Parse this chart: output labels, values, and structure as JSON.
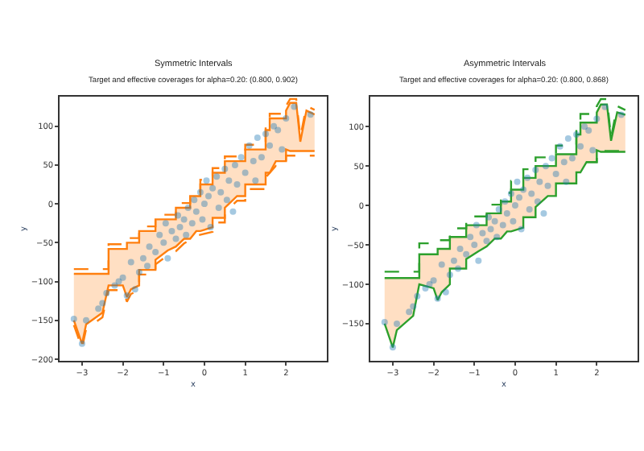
{
  "chart_data": [
    {
      "type": "line",
      "title": "Symmetric Intervals",
      "subtitle": "Target and effective coverages for alpha=0.20: (0.800, 0.902)",
      "xlabel": "x",
      "ylabel": "y",
      "xlim": [
        -3.55,
        3.0
      ],
      "xticks": [
        -3,
        -2,
        -1,
        0,
        1,
        2
      ],
      "ylim": [
        -202,
        138
      ],
      "yticks": [
        -200,
        -150,
        -100,
        -50,
        0,
        50,
        100
      ],
      "series": [
        {
          "type": "scatter",
          "color": "#1f77b4",
          "marker": "circle",
          "x": [
            -3.2,
            -3.0,
            -2.9,
            -2.6,
            -2.5,
            -2.4,
            -2.2,
            -2.1,
            -2.0,
            -1.9,
            -1.8,
            -1.7,
            -1.6,
            -1.5,
            -1.4,
            -1.35,
            -1.2,
            -1.1,
            -1.0,
            -0.95,
            -0.9,
            -0.8,
            -0.7,
            -0.65,
            -0.6,
            -0.5,
            -0.45,
            -0.4,
            -0.3,
            -0.25,
            -0.2,
            -0.1,
            -0.05,
            0,
            0.05,
            0.1,
            0.15,
            0.2,
            0.3,
            0.35,
            0.4,
            0.5,
            0.55,
            0.6,
            0.7,
            0.75,
            0.8,
            0.9,
            1.0,
            1.1,
            1.2,
            1.25,
            1.3,
            1.4,
            1.5,
            1.6,
            1.7,
            1.8,
            1.9,
            2.0,
            2.2,
            2.6
          ],
          "values": [
            -148,
            -180,
            -150,
            -135,
            -128,
            -115,
            -105,
            -100,
            -95,
            -118,
            -75,
            -110,
            -88,
            -70,
            -80,
            -55,
            -62,
            -40,
            -50,
            -25,
            -70,
            -35,
            -45,
            -15,
            -30,
            -20,
            -40,
            -5,
            -25,
            5,
            -10,
            15,
            -20,
            0,
            30,
            10,
            -30,
            20,
            35,
            -5,
            15,
            45,
            5,
            30,
            -10,
            50,
            25,
            60,
            40,
            75,
            55,
            30,
            85,
            60,
            90,
            75,
            100,
            95,
            70,
            110,
            125,
            115
          ]
        },
        {
          "color": "#ff7f0e",
          "line_style": "solid",
          "x": [
            -3.2,
            -3.0,
            -2.9,
            -2.5,
            -2.35,
            -2.35,
            -2.0,
            -1.9,
            -1.9,
            -1.8,
            -1.6,
            -1.6,
            -1.2,
            -1.2,
            -0.9,
            -0.7,
            -0.7,
            -0.5,
            -0.35,
            -0.35,
            -0.2,
            -0.1,
            -0.1,
            0.2,
            0.2,
            0.5,
            0.5,
            0.8,
            1.0,
            1.0,
            1.5,
            1.5,
            1.6,
            1.6,
            1.75,
            2.0,
            2.0,
            2.1,
            2.25,
            2.35,
            2.5,
            2.7
          ],
          "values": [
            -90,
            -90,
            -90,
            -90,
            -90,
            -58,
            -58,
            -58,
            -50,
            -50,
            -50,
            -35,
            -35,
            -20,
            -20,
            -20,
            -5,
            -5,
            -5,
            10,
            10,
            10,
            25,
            25,
            40,
            40,
            55,
            55,
            55,
            70,
            70,
            95,
            95,
            110,
            110,
            110,
            120,
            130,
            130,
            80,
            120,
            115
          ],
          "lower": [
            -150,
            -180,
            -155,
            -140,
            -105,
            -105,
            -105,
            -120,
            -120,
            -110,
            -105,
            -85,
            -85,
            -72,
            -60,
            -55,
            -55,
            -45,
            -45,
            -45,
            -35,
            -35,
            -35,
            -30,
            -18,
            -18,
            -5,
            10,
            10,
            25,
            25,
            40,
            40,
            40,
            55,
            55,
            70,
            68,
            68,
            68,
            68,
            68
          ],
          "upper": [
            -90,
            -90,
            -90,
            -90,
            -90,
            -58,
            -58,
            -58,
            -50,
            -50,
            -50,
            -35,
            -35,
            -20,
            -20,
            -20,
            -5,
            -5,
            -5,
            10,
            10,
            10,
            25,
            25,
            40,
            40,
            55,
            55,
            55,
            70,
            70,
            95,
            95,
            110,
            110,
            110,
            120,
            130,
            130,
            80,
            120,
            115
          ]
        },
        {
          "color": "#ff7f0e",
          "line_style": "solid",
          "x": [
            -3.2,
            -3.0,
            -2.9,
            -2.5,
            -2.35,
            -2.35,
            -2.0,
            -1.9,
            -1.9,
            -1.8,
            -1.6,
            -1.6,
            -1.2,
            -1.2,
            -0.9,
            -0.7,
            -0.7,
            -0.5,
            -0.35,
            -0.35,
            -0.2,
            -0.1,
            -0.1,
            0.2,
            0.2,
            0.5,
            0.5,
            0.8,
            1.0,
            1.0,
            1.5,
            1.5,
            1.6,
            1.6,
            1.75,
            2.0,
            2.0,
            2.1,
            2.25,
            2.35,
            2.5,
            2.7
          ],
          "values": [
            -150,
            -180,
            -155,
            -140,
            -105,
            -105,
            -105,
            -120,
            -120,
            -110,
            -105,
            -85,
            -85,
            -72,
            -60,
            -55,
            -55,
            -45,
            -45,
            -45,
            -35,
            -35,
            -35,
            -30,
            -18,
            -18,
            -5,
            10,
            10,
            25,
            25,
            40,
            40,
            40,
            55,
            55,
            70,
            68,
            68,
            68,
            68,
            68
          ]
        },
        {
          "color": "#ff7f0e",
          "line_style": "dashed",
          "x": [
            -3.2,
            -2.35,
            -2.35,
            -1.9,
            -1.9,
            -1.6,
            -1.6,
            -1.2,
            -1.2,
            -0.7,
            -0.7,
            -0.35,
            -0.35,
            -0.1,
            -0.1,
            0.2,
            0.2,
            0.5,
            0.5,
            1.0,
            1.0,
            1.5,
            1.5,
            1.6,
            1.6,
            2.0,
            2.0,
            2.1,
            2.25,
            2.35,
            2.5,
            2.7
          ],
          "values": [
            -84,
            -84,
            -52,
            -52,
            -44,
            -44,
            -29,
            -29,
            -14,
            -14,
            1,
            1,
            16,
            16,
            31,
            31,
            46,
            46,
            61,
            61,
            76,
            76,
            101,
            101,
            116,
            116,
            126,
            135,
            135,
            86,
            126,
            121
          ]
        },
        {
          "color": "#ff7f0e",
          "line_style": "dashed",
          "x": [
            -3.2,
            -3.0,
            -2.9,
            -2.5,
            -2.35,
            -2.0,
            -1.9,
            -1.8,
            -1.6,
            -1.6,
            -1.2,
            -1.2,
            -0.9,
            -0.7,
            -0.5,
            -0.2,
            0.2,
            0.2,
            0.5,
            0.5,
            0.8,
            1.0,
            1.0,
            1.5,
            1.5,
            1.75,
            2.0,
            2.0,
            2.7
          ],
          "values": [
            -156,
            -186,
            -161,
            -146,
            -111,
            -111,
            -126,
            -116,
            -111,
            -91,
            -91,
            -78,
            -66,
            -61,
            -51,
            -41,
            -36,
            -24,
            -24,
            -11,
            4,
            4,
            19,
            19,
            34,
            49,
            49,
            62,
            62
          ]
        }
      ]
    },
    {
      "type": "line",
      "title": "Asymmetric Intervals",
      "subtitle": "Target and effective coverages for alpha=0.20: (0.800, 0.868)",
      "xlabel": "x",
      "ylabel": "y",
      "xlim": [
        -3.55,
        3.0
      ],
      "xticks": [
        -3,
        -2,
        -1,
        0,
        1,
        2
      ],
      "ylim": [
        -197,
        138
      ],
      "yticks": [
        -150,
        -100,
        -50,
        0,
        50,
        100
      ],
      "series": [
        {
          "type": "scatter",
          "color": "#1f77b4",
          "marker": "circle",
          "x": [
            -3.2,
            -3.0,
            -2.9,
            -2.6,
            -2.5,
            -2.4,
            -2.2,
            -2.1,
            -2.0,
            -1.9,
            -1.8,
            -1.7,
            -1.6,
            -1.5,
            -1.4,
            -1.35,
            -1.2,
            -1.1,
            -1.0,
            -0.95,
            -0.9,
            -0.8,
            -0.7,
            -0.65,
            -0.6,
            -0.5,
            -0.45,
            -0.4,
            -0.3,
            -0.25,
            -0.2,
            -0.1,
            -0.05,
            0,
            0.05,
            0.1,
            0.15,
            0.2,
            0.3,
            0.35,
            0.4,
            0.5,
            0.55,
            0.6,
            0.7,
            0.75,
            0.8,
            0.9,
            1.0,
            1.1,
            1.2,
            1.25,
            1.3,
            1.4,
            1.5,
            1.6,
            1.7,
            1.8,
            1.9,
            2.0,
            2.2,
            2.6
          ],
          "values": [
            -148,
            -180,
            -150,
            -135,
            -128,
            -115,
            -105,
            -100,
            -95,
            -118,
            -75,
            -110,
            -88,
            -70,
            -80,
            -55,
            -62,
            -40,
            -50,
            -25,
            -70,
            -35,
            -45,
            -15,
            -30,
            -20,
            -40,
            -5,
            -25,
            5,
            -10,
            15,
            -20,
            0,
            30,
            10,
            -30,
            20,
            35,
            -5,
            15,
            45,
            5,
            30,
            -10,
            50,
            25,
            60,
            40,
            75,
            55,
            30,
            85,
            60,
            90,
            75,
            100,
            95,
            70,
            110,
            125,
            115
          ]
        },
        {
          "color": "#2ca02c",
          "line_style": "solid",
          "x": [
            -3.2,
            -3.0,
            -2.9,
            -2.5,
            -2.35,
            -2.35,
            -2.0,
            -1.9,
            -1.9,
            -1.8,
            -1.6,
            -1.6,
            -1.2,
            -1.2,
            -0.9,
            -0.7,
            -0.7,
            -0.5,
            -0.35,
            -0.35,
            -0.2,
            -0.1,
            -0.1,
            0.2,
            0.2,
            0.5,
            0.5,
            0.8,
            1.0,
            1.0,
            1.5,
            1.5,
            1.6,
            1.6,
            1.75,
            2.0,
            2.0,
            2.1,
            2.25,
            2.35,
            2.5,
            2.7
          ],
          "values": [
            -92,
            -92,
            -92,
            -92,
            -92,
            -62,
            -62,
            -62,
            -55,
            -55,
            -55,
            -40,
            -40,
            -25,
            -25,
            -25,
            -10,
            -10,
            -10,
            5,
            5,
            5,
            20,
            20,
            35,
            35,
            50,
            50,
            50,
            65,
            65,
            90,
            90,
            105,
            105,
            105,
            118,
            128,
            128,
            82,
            118,
            115
          ],
          "lower": [
            -150,
            -180,
            -158,
            -140,
            -100,
            -100,
            -105,
            -120,
            -120,
            -110,
            -100,
            -80,
            -80,
            -68,
            -58,
            -52,
            -52,
            -42,
            -42,
            -42,
            -33,
            -33,
            -33,
            -28,
            -15,
            -15,
            -2,
            12,
            12,
            28,
            28,
            42,
            42,
            42,
            55,
            55,
            70,
            68,
            68,
            68,
            68,
            68
          ],
          "upper": [
            -92,
            -92,
            -92,
            -92,
            -92,
            -62,
            -62,
            -62,
            -55,
            -55,
            -55,
            -40,
            -40,
            -25,
            -25,
            -25,
            -10,
            -10,
            -10,
            5,
            5,
            5,
            20,
            20,
            35,
            35,
            50,
            50,
            50,
            65,
            65,
            90,
            90,
            105,
            105,
            105,
            118,
            128,
            128,
            82,
            118,
            115
          ]
        },
        {
          "color": "#2ca02c",
          "line_style": "solid",
          "x": [
            -3.2,
            -3.0,
            -2.9,
            -2.5,
            -2.35,
            -2.35,
            -2.0,
            -1.9,
            -1.9,
            -1.8,
            -1.6,
            -1.6,
            -1.2,
            -1.2,
            -0.9,
            -0.7,
            -0.7,
            -0.5,
            -0.35,
            -0.35,
            -0.2,
            -0.1,
            -0.1,
            0.2,
            0.2,
            0.5,
            0.5,
            0.8,
            1.0,
            1.0,
            1.5,
            1.5,
            1.6,
            1.6,
            1.75,
            2.0,
            2.0,
            2.1,
            2.25,
            2.35,
            2.5,
            2.7
          ],
          "values": [
            -150,
            -180,
            -158,
            -140,
            -100,
            -100,
            -105,
            -120,
            -120,
            -110,
            -100,
            -80,
            -80,
            -68,
            -58,
            -52,
            -52,
            -42,
            -42,
            -42,
            -33,
            -33,
            -33,
            -28,
            -15,
            -15,
            -2,
            12,
            12,
            28,
            28,
            42,
            42,
            42,
            55,
            55,
            70,
            68,
            68,
            68,
            68,
            68
          ]
        },
        {
          "color": "#2ca02c",
          "line_style": "dashed",
          "x": [
            -3.2,
            -2.35,
            -2.35,
            -1.9,
            -1.9,
            -1.6,
            -1.6,
            -1.2,
            -1.2,
            -0.7,
            -0.7,
            -0.35,
            -0.35,
            -0.1,
            -0.1,
            0.2,
            0.2,
            0.5,
            0.5,
            1.0,
            1.0,
            1.5,
            1.5,
            1.6,
            1.6,
            2.0,
            2.0,
            2.1,
            2.25,
            2.35,
            2.5,
            2.7
          ],
          "values": [
            -84,
            -84,
            -48,
            -48,
            -44,
            -44,
            -29,
            -29,
            -14,
            -14,
            1,
            1,
            16,
            16,
            31,
            31,
            46,
            46,
            61,
            61,
            76,
            76,
            101,
            101,
            116,
            116,
            126,
            135,
            135,
            86,
            126,
            121
          ]
        },
        {
          "color": "#2ca02c",
          "line_style": "dashed",
          "x": [
            1.75,
            2.0,
            2.0,
            2.7
          ],
          "values": [
            55,
            55,
            69,
            69
          ]
        }
      ]
    }
  ]
}
